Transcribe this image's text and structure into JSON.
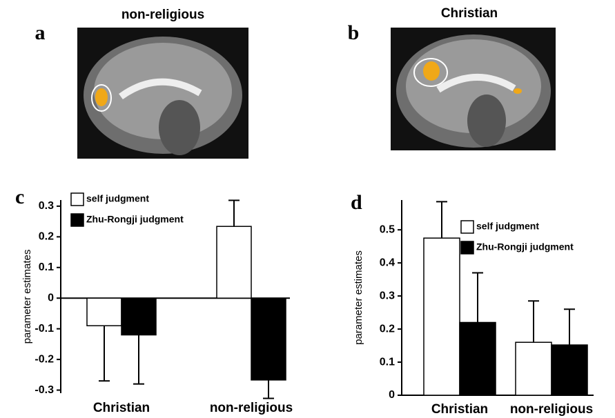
{
  "panels": [
    {
      "label": "a",
      "title": "non-religious"
    },
    {
      "label": "b",
      "title": "Christian"
    }
  ],
  "chart_data": [
    {
      "type": "bar",
      "panel_label": "c",
      "y_label": "parameter estimates",
      "categories": [
        "Christian",
        "non-religious"
      ],
      "series": [
        {
          "name": "self judgment",
          "color": "#ffffff",
          "values": [
            -0.09,
            0.234
          ],
          "errors": [
            0.18,
            0.085
          ]
        },
        {
          "name": "Zhu-Rongji judgment",
          "color": "#000000",
          "values": [
            -0.12,
            -0.267
          ],
          "errors": [
            0.16,
            0.06
          ]
        }
      ],
      "ylim": [
        -0.31,
        0.32
      ],
      "yticks": [
        -0.3,
        -0.2,
        -0.1,
        0,
        0.1,
        0.2,
        0.3
      ]
    },
    {
      "type": "bar",
      "panel_label": "d",
      "y_label": "parameter estimates",
      "categories": [
        "Christian",
        "non-religious"
      ],
      "series": [
        {
          "name": "self judgment",
          "color": "#ffffff",
          "values": [
            0.475,
            0.16
          ],
          "errors": [
            0.11,
            0.125
          ]
        },
        {
          "name": "Zhu-Rongji judgment",
          "color": "#000000",
          "values": [
            0.22,
            0.152
          ],
          "errors": [
            0.15,
            0.108
          ]
        }
      ],
      "ylim": [
        0,
        0.59
      ],
      "yticks": [
        0,
        0.1,
        0.2,
        0.3,
        0.4,
        0.5
      ]
    }
  ]
}
